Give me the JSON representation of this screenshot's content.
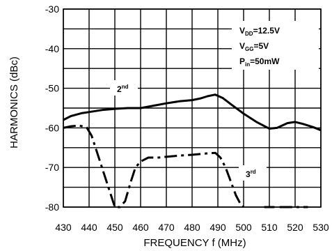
{
  "chart_data": {
    "type": "line",
    "xlabel": "FREQUENCY f (MHz)",
    "ylabel": "HARMONICS (dBc)",
    "xlim": [
      430,
      530
    ],
    "ylim": [
      -80,
      -30
    ],
    "x_ticks": [
      430,
      440,
      450,
      460,
      470,
      480,
      490,
      500,
      510,
      520,
      530
    ],
    "y_ticks": [
      -30,
      -40,
      -50,
      -60,
      -70,
      -80
    ],
    "grid": true,
    "conditions": [
      {
        "main": "V",
        "sub": "DD",
        "rest": "=12.5V"
      },
      {
        "main": "V",
        "sub": "GG",
        "rest": "=5V"
      },
      {
        "main": "P",
        "sub": "in",
        "rest": "=50mW"
      }
    ],
    "series": [
      {
        "name": "2nd",
        "label_main": "2",
        "label_sup": "nd",
        "style": "solid",
        "points": [
          [
            430,
            -58
          ],
          [
            433,
            -57
          ],
          [
            437,
            -56.3
          ],
          [
            440,
            -56
          ],
          [
            445,
            -55.5
          ],
          [
            450,
            -55.2
          ],
          [
            455,
            -55
          ],
          [
            460,
            -55
          ],
          [
            465,
            -54.4
          ],
          [
            470,
            -53.8
          ],
          [
            475,
            -53.3
          ],
          [
            480,
            -53
          ],
          [
            483,
            -52.6
          ],
          [
            486,
            -52
          ],
          [
            489,
            -51.6
          ],
          [
            492,
            -52.5
          ],
          [
            495,
            -54
          ],
          [
            500,
            -56.4
          ],
          [
            505,
            -58.5
          ],
          [
            510,
            -60.2
          ],
          [
            513,
            -60
          ],
          [
            517,
            -58.8
          ],
          [
            520,
            -58.5
          ],
          [
            523,
            -59
          ],
          [
            527,
            -59.8
          ],
          [
            530,
            -60.6
          ]
        ]
      },
      {
        "name": "3rd",
        "label_main": "3",
        "label_sup": "rd",
        "style": "dashdot",
        "points": [
          [
            430,
            -60
          ],
          [
            433,
            -59.6
          ],
          [
            436,
            -59.4
          ],
          [
            439,
            -59.8
          ],
          [
            441,
            -62
          ],
          [
            443,
            -66
          ],
          [
            445,
            -70
          ],
          [
            447,
            -74
          ],
          [
            449,
            -78
          ],
          [
            450,
            -80
          ],
          [
            452,
            -80
          ],
          [
            454,
            -78.5
          ],
          [
            456,
            -74
          ],
          [
            458,
            -70
          ],
          [
            460,
            -68.5
          ],
          [
            463,
            -67.5
          ],
          [
            467,
            -67.5
          ],
          [
            470,
            -67.3
          ],
          [
            475,
            -67
          ],
          [
            480,
            -66.8
          ],
          [
            485,
            -66.5
          ],
          [
            489,
            -66.3
          ],
          [
            491,
            -67.5
          ],
          [
            493,
            -70
          ],
          [
            495,
            -73.5
          ],
          [
            497,
            -77
          ],
          [
            499,
            -79.5
          ],
          [
            500,
            -80
          ]
        ]
      },
      {
        "name": "3rd-tail",
        "style": "solid",
        "points": [
          [
            508,
            -80
          ],
          [
            512,
            -80
          ]
        ]
      },
      {
        "name": "3rd-tail2",
        "style": "dashdot",
        "points": [
          [
            514,
            -80
          ],
          [
            525,
            -80
          ]
        ]
      }
    ]
  }
}
